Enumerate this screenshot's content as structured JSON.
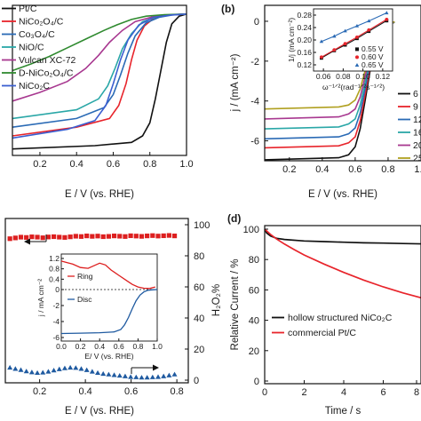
{
  "chart_data": [
    {
      "panel": "a",
      "type": "line",
      "xlabel": "E / V (vs. RHE)",
      "xticks": [
        "0.2",
        "0.4",
        "0.6",
        "0.8",
        "1.0"
      ],
      "xlim": [
        0.05,
        1.0
      ],
      "ylim": [
        -6.5,
        0.4
      ],
      "legend_position": "top-left",
      "series": [
        {
          "name": "Pt/C",
          "color": "#111111",
          "x": [
            0.05,
            0.5,
            0.7,
            0.76,
            0.8,
            0.83,
            0.86,
            0.89,
            0.92,
            0.96,
            1.0
          ],
          "y": [
            -6.2,
            -6.05,
            -5.9,
            -5.6,
            -5.0,
            -3.9,
            -2.6,
            -1.3,
            -0.45,
            -0.1,
            0.0
          ]
        },
        {
          "name": "NiCo₂O₄/C",
          "color": "#e8242b",
          "x": [
            0.05,
            0.4,
            0.58,
            0.63,
            0.67,
            0.7,
            0.73,
            0.77,
            0.82,
            0.9,
            1.0
          ],
          "y": [
            -5.6,
            -5.2,
            -4.8,
            -4.2,
            -3.2,
            -2.1,
            -1.2,
            -0.55,
            -0.2,
            -0.05,
            0.0
          ]
        },
        {
          "name": "Co₃O₄/C",
          "color": "#2a6ab5",
          "x": [
            0.05,
            0.4,
            0.55,
            0.6,
            0.64,
            0.68,
            0.72,
            0.78,
            0.85,
            0.92,
            1.0
          ],
          "y": [
            -5.2,
            -4.8,
            -4.3,
            -3.7,
            -2.8,
            -1.8,
            -1.0,
            -0.4,
            -0.15,
            -0.05,
            0.0
          ]
        },
        {
          "name": "NiO/C",
          "color": "#2aa7a7",
          "x": [
            0.05,
            0.4,
            0.52,
            0.57,
            0.61,
            0.65,
            0.7,
            0.76,
            0.84,
            0.92,
            1.0
          ],
          "y": [
            -4.8,
            -4.4,
            -3.9,
            -3.3,
            -2.5,
            -1.6,
            -0.9,
            -0.35,
            -0.12,
            -0.03,
            0.0
          ]
        },
        {
          "name": "Vulcan XC-72",
          "color": "#a83890",
          "x": [
            0.05,
            0.2,
            0.35,
            0.45,
            0.52,
            0.58,
            0.65,
            0.72,
            0.82,
            0.92,
            1.0
          ],
          "y": [
            -4.0,
            -3.6,
            -3.1,
            -2.5,
            -1.9,
            -1.3,
            -0.75,
            -0.35,
            -0.12,
            -0.03,
            0.0
          ]
        },
        {
          "name": "D-NiCo₂O₄/C",
          "color": "#2f8a2f",
          "x": [
            0.05,
            0.15,
            0.25,
            0.35,
            0.45,
            0.55,
            0.62,
            0.7,
            0.78,
            0.88,
            1.0
          ],
          "y": [
            -2.6,
            -2.3,
            -1.95,
            -1.55,
            -1.15,
            -0.75,
            -0.5,
            -0.25,
            -0.1,
            -0.03,
            0.0
          ]
        },
        {
          "name": "NiCo₂C",
          "color": "#3b5fd0",
          "x": [
            0.05,
            0.35,
            0.5,
            0.56,
            0.6,
            0.64,
            0.68,
            0.74,
            0.82,
            0.92,
            1.0
          ],
          "y": [
            -5.7,
            -5.3,
            -4.9,
            -4.2,
            -3.2,
            -2.1,
            -1.2,
            -0.5,
            -0.15,
            -0.04,
            0.0
          ]
        }
      ]
    },
    {
      "panel": "b",
      "type": "line",
      "panel_label": "(b)",
      "xlabel": "E / V (vs. RHE)",
      "ylabel": "j / (mA cm⁻²)",
      "xticks": [
        "0.2",
        "0.4",
        "0.6",
        "0.8",
        "1.0"
      ],
      "yticks": [
        "0",
        "-2",
        "-4",
        "-6"
      ],
      "xlim": [
        0.05,
        1.0
      ],
      "ylim": [
        -7.0,
        0.8
      ],
      "legend_position": "right",
      "series": [
        {
          "name": "6",
          "color": "#111111",
          "x": [
            0.05,
            0.5,
            0.56,
            0.6,
            0.63,
            0.66,
            0.69,
            0.72,
            0.76,
            0.8,
            0.84
          ],
          "y": [
            -6.95,
            -6.85,
            -6.7,
            -6.3,
            -5.4,
            -4.0,
            -2.5,
            -1.3,
            -0.5,
            -0.15,
            -0.05
          ]
        },
        {
          "name": "9",
          "color": "#e8242b",
          "x": [
            0.05,
            0.5,
            0.56,
            0.6,
            0.63,
            0.66,
            0.69,
            0.72,
            0.76,
            0.8,
            0.84
          ],
          "y": [
            -6.35,
            -6.25,
            -6.1,
            -5.8,
            -5.0,
            -3.7,
            -2.3,
            -1.2,
            -0.45,
            -0.14,
            -0.05
          ]
        },
        {
          "name": "12",
          "color": "#2a6ab5",
          "x": [
            0.05,
            0.5,
            0.56,
            0.6,
            0.63,
            0.66,
            0.69,
            0.72,
            0.76,
            0.8,
            0.84
          ],
          "y": [
            -5.9,
            -5.8,
            -5.65,
            -5.35,
            -4.6,
            -3.4,
            -2.1,
            -1.1,
            -0.42,
            -0.13,
            -0.05
          ]
        },
        {
          "name": "16",
          "color": "#2aa7a7",
          "x": [
            0.05,
            0.5,
            0.56,
            0.6,
            0.63,
            0.66,
            0.69,
            0.72,
            0.76,
            0.8,
            0.84
          ],
          "y": [
            -5.4,
            -5.3,
            -5.15,
            -4.9,
            -4.2,
            -3.1,
            -1.9,
            -1.0,
            -0.38,
            -0.12,
            -0.04
          ]
        },
        {
          "name": "20",
          "color": "#a83890",
          "x": [
            0.05,
            0.5,
            0.56,
            0.6,
            0.63,
            0.66,
            0.69,
            0.72,
            0.76,
            0.8,
            0.84
          ],
          "y": [
            -4.9,
            -4.8,
            -4.65,
            -4.4,
            -3.8,
            -2.8,
            -1.7,
            -0.9,
            -0.34,
            -0.1,
            -0.03
          ]
        },
        {
          "name": "25",
          "color": "#b0a020",
          "x": [
            0.05,
            0.5,
            0.56,
            0.6,
            0.63,
            0.66,
            0.69,
            0.72,
            0.76,
            0.8,
            0.84
          ],
          "y": [
            -4.4,
            -4.3,
            -4.2,
            -3.95,
            -3.4,
            -2.5,
            -1.5,
            -0.8,
            -0.3,
            -0.09,
            -0.03
          ]
        }
      ],
      "inset": {
        "ylabel": "1/j (mA cm⁻²)",
        "xlabel": "ω⁻¹ᐟ²(rad⁻¹ᐟ²s⁻¹ᐟ²)",
        "xticks": [
          "0.06",
          "0.08",
          "0.10",
          "0.12"
        ],
        "yticks": [
          "0.12",
          "0.16",
          "0.20",
          "0.24",
          "0.28"
        ],
        "xlim": [
          0.05,
          0.13
        ],
        "ylim": [
          0.1,
          0.3
        ],
        "series": [
          {
            "name": "0.55 V",
            "color": "#111111",
            "marker": "square",
            "x": [
              0.058,
              0.071,
              0.082,
              0.094,
              0.106,
              0.124
            ],
            "y": [
              0.142,
              0.166,
              0.184,
              0.205,
              0.228,
              0.262
            ]
          },
          {
            "name": "0.60 V",
            "color": "#e8242b",
            "marker": "circle",
            "x": [
              0.058,
              0.071,
              0.082,
              0.094,
              0.106,
              0.124
            ],
            "y": [
              0.145,
              0.168,
              0.188,
              0.209,
              0.232,
              0.266
            ]
          },
          {
            "name": "0.65 V",
            "color": "#2a6ab5",
            "marker": "triangle",
            "x": [
              0.058,
              0.071,
              0.082,
              0.094,
              0.106,
              0.124
            ],
            "y": [
              0.195,
              0.212,
              0.229,
              0.245,
              0.261,
              0.287
            ]
          }
        ]
      }
    },
    {
      "panel": "c",
      "type": "scatter",
      "xlabel": "E / V (vs. RHE)",
      "ylabel_right": "H₂O₂%",
      "xticks": [
        "0.2",
        "0.4",
        "0.6",
        "0.8"
      ],
      "yticks_right": [
        "100",
        "80",
        "60",
        "40",
        "20",
        "0"
      ],
      "xlim": [
        0.05,
        0.85
      ],
      "ylim": [
        0,
        100
      ],
      "series": [
        {
          "name": "",
          "color": "#dd1f1f",
          "marker": "square",
          "x": [
            0.07,
            0.094,
            0.118,
            0.142,
            0.166,
            0.19,
            0.214,
            0.238,
            0.262,
            0.286,
            0.31,
            0.334,
            0.358,
            0.382,
            0.406,
            0.43,
            0.454,
            0.478,
            0.502,
            0.526,
            0.55,
            0.574,
            0.598,
            0.622,
            0.646,
            0.67,
            0.694,
            0.718,
            0.742,
            0.766,
            0.79
          ],
          "y": [
            91.0,
            91.5,
            92.0,
            91.8,
            92.2,
            92.0,
            91.6,
            92.1,
            92.3,
            92.0,
            91.8,
            92.2,
            92.6,
            92.4,
            92.8,
            92.5,
            92.7,
            92.3,
            92.5,
            92.8,
            92.6,
            92.4,
            92.9,
            92.7,
            92.5,
            92.8,
            93.0,
            92.7,
            92.9,
            93.1,
            92.8
          ]
        },
        {
          "name": "",
          "color": "#1f5aa0",
          "marker": "triangle",
          "x": [
            0.07,
            0.094,
            0.118,
            0.142,
            0.166,
            0.19,
            0.214,
            0.238,
            0.262,
            0.286,
            0.31,
            0.334,
            0.358,
            0.382,
            0.406,
            0.43,
            0.454,
            0.478,
            0.502,
            0.526,
            0.55,
            0.574,
            0.598,
            0.622,
            0.646,
            0.67,
            0.694,
            0.718,
            0.742,
            0.766,
            0.79
          ],
          "y": [
            8.0,
            7.2,
            6.5,
            5.6,
            5.0,
            4.6,
            4.8,
            5.4,
            6.2,
            7.0,
            7.6,
            8.0,
            7.8,
            7.2,
            6.4,
            5.4,
            4.6,
            4.0,
            3.6,
            3.2,
            2.8,
            2.4,
            2.0,
            1.8,
            1.6,
            1.6,
            1.8,
            2.0,
            2.4,
            3.0,
            3.6
          ]
        }
      ],
      "inset": {
        "ylabel": "j / mA cm⁻²",
        "xlabel": "E/ V (vs. RHE)",
        "xticks": [
          "0.0",
          "0.2",
          "0.4",
          "0.6",
          "0.8",
          "1.0"
        ],
        "yticks": [
          "1.2",
          "0.8",
          "0.4",
          "0",
          "-2",
          "-4",
          "-6"
        ],
        "series": [
          {
            "name": "Ring",
            "color": "#dd1f1f",
            "x": [
              0.0,
              0.05,
              0.12,
              0.2,
              0.28,
              0.34,
              0.4,
              0.46,
              0.52,
              0.6,
              0.68,
              0.74,
              0.8,
              0.86,
              0.92,
              0.98
            ],
            "y": [
              1.1,
              1.05,
              0.98,
              0.85,
              0.82,
              0.92,
              1.02,
              0.95,
              0.75,
              0.55,
              0.35,
              0.2,
              0.1,
              0.05,
              0.04,
              0.1
            ]
          },
          {
            "name": "Disc",
            "color": "#1f5aa0",
            "x": [
              0.0,
              0.2,
              0.4,
              0.55,
              0.62,
              0.66,
              0.7,
              0.74,
              0.78,
              0.82,
              0.86,
              0.9,
              0.95,
              1.0
            ],
            "y": [
              -5.5,
              -5.45,
              -5.4,
              -5.3,
              -5.0,
              -4.4,
              -3.5,
              -2.4,
              -1.4,
              -0.7,
              -0.3,
              -0.1,
              -0.03,
              0.0
            ]
          }
        ]
      }
    },
    {
      "panel": "d",
      "type": "line",
      "panel_label": "(d)",
      "xlabel": "Time / s",
      "ylabel": "Relative Current / %",
      "xticks": [
        "0",
        "2",
        "4",
        "6",
        "8"
      ],
      "yticks": [
        "100",
        "80",
        "60",
        "40",
        "20",
        "0"
      ],
      "xlim": [
        0,
        8
      ],
      "ylim": [
        0,
        100
      ],
      "legend_position": "bottom-right",
      "series": [
        {
          "name": "hollow structured NiCo₂C",
          "color": "#111111",
          "x": [
            0,
            0.1,
            0.3,
            0.6,
            1.0,
            2.0,
            3.0,
            4.0,
            5.0,
            6.0,
            7.0,
            8.0
          ],
          "y": [
            100,
            97.5,
            95.5,
            94.0,
            93.2,
            92.2,
            91.8,
            91.4,
            91.0,
            90.8,
            90.5,
            90.3
          ]
        },
        {
          "name": "commercial Pt/C",
          "color": "#e8242b",
          "x": [
            0,
            0.3,
            0.6,
            1.0,
            1.5,
            2.0,
            3.0,
            4.0,
            5.0,
            6.0,
            7.0,
            8.0
          ],
          "y": [
            100,
            96.5,
            93.5,
            90.2,
            86.5,
            83.0,
            77.0,
            71.5,
            66.5,
            62.0,
            58.0,
            54.5
          ]
        }
      ]
    }
  ]
}
